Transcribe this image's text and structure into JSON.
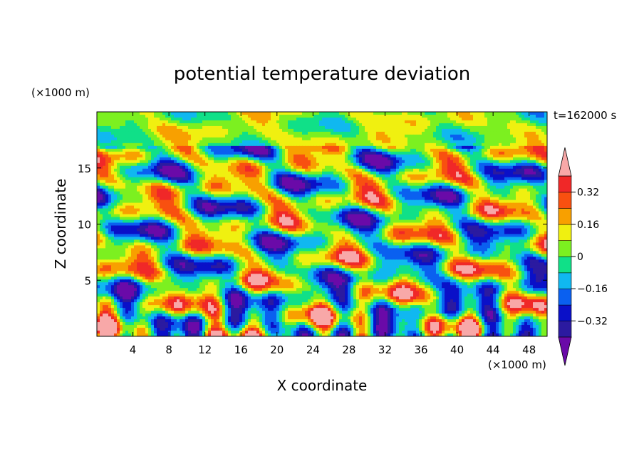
{
  "chart_data": {
    "type": "heatmap",
    "title": "potential temperature deviation",
    "xlabel": "X coordinate",
    "ylabel": "Z coordinate",
    "x_unit": "(×1000 m)",
    "y_unit": "(×1000 m)",
    "time_label": "t=162000 s",
    "xlim": [
      0,
      50
    ],
    "ylim": [
      0,
      20
    ],
    "x_ticks": [
      4,
      8,
      12,
      16,
      20,
      24,
      28,
      32,
      36,
      40,
      44,
      48
    ],
    "y_ticks": [
      5,
      10,
      15
    ],
    "colorbar": {
      "levels": [
        -0.4,
        -0.32,
        -0.24,
        -0.16,
        -0.08,
        0,
        0.08,
        0.16,
        0.24,
        0.32,
        0.4
      ],
      "colors": [
        "#6a0aa8",
        "#2b1aa0",
        "#0a10c8",
        "#0a60f0",
        "#10b8f0",
        "#10e088",
        "#7cf020",
        "#f0f010",
        "#f8a000",
        "#f85010",
        "#f02828",
        "#f8a8a8"
      ],
      "tick_labels": [
        "0.32",
        "0.16",
        "0",
        "−0.16",
        "−0.32"
      ],
      "tick_values": [
        0.32,
        0.16,
        0,
        -0.16,
        -0.32
      ],
      "extend": "both"
    }
  }
}
